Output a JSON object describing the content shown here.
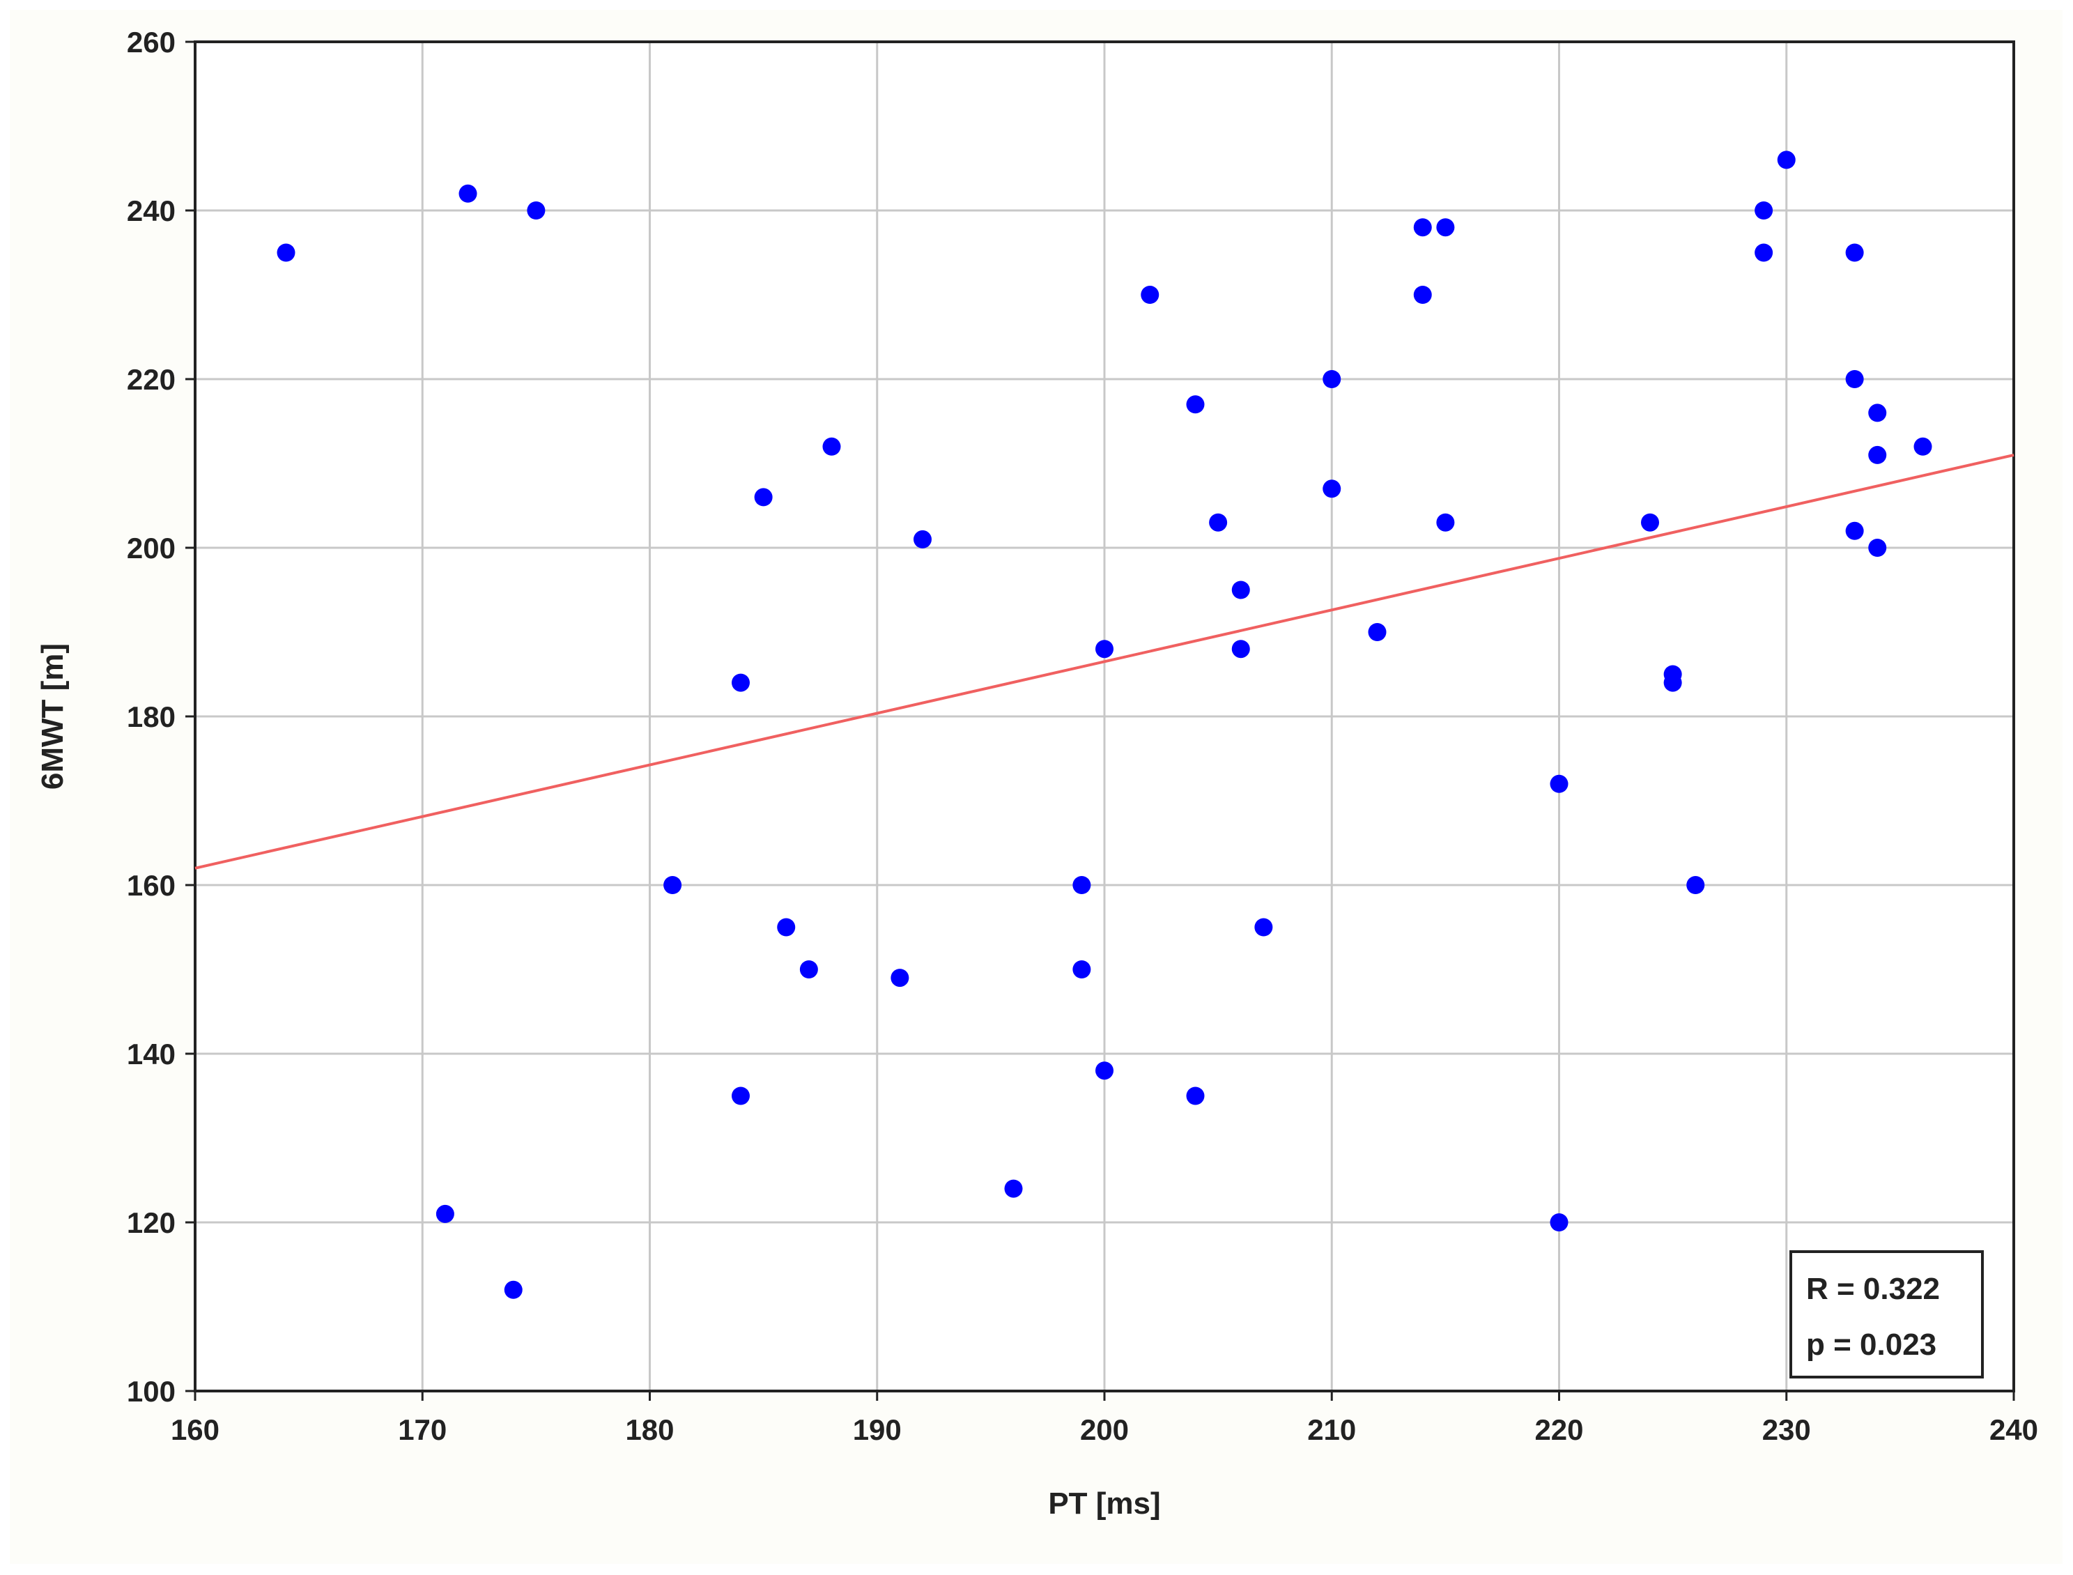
{
  "chart_data": {
    "type": "scatter",
    "title": "",
    "xlabel": "PT [ms]",
    "ylabel": "6MWT [m]",
    "xlim": [
      160,
      240
    ],
    "ylim": [
      100,
      260
    ],
    "xticks": [
      160,
      170,
      180,
      190,
      200,
      210,
      220,
      230,
      240
    ],
    "yticks": [
      100,
      120,
      140,
      160,
      180,
      200,
      220,
      240,
      260
    ],
    "grid": true,
    "legend": "none",
    "colors": {
      "points": "#0000ff",
      "fit_line": "#f06060",
      "grid": "#c8c8c8",
      "axis": "#222222"
    },
    "points": [
      {
        "x": 164,
        "y": 235
      },
      {
        "x": 171,
        "y": 121
      },
      {
        "x": 172,
        "y": 242
      },
      {
        "x": 174,
        "y": 112
      },
      {
        "x": 175,
        "y": 240
      },
      {
        "x": 181,
        "y": 160
      },
      {
        "x": 184,
        "y": 184
      },
      {
        "x": 184,
        "y": 135
      },
      {
        "x": 185,
        "y": 206
      },
      {
        "x": 186,
        "y": 155
      },
      {
        "x": 187,
        "y": 150
      },
      {
        "x": 188,
        "y": 212
      },
      {
        "x": 191,
        "y": 149
      },
      {
        "x": 192,
        "y": 201
      },
      {
        "x": 196,
        "y": 124
      },
      {
        "x": 199,
        "y": 160
      },
      {
        "x": 199,
        "y": 150
      },
      {
        "x": 200,
        "y": 188
      },
      {
        "x": 200,
        "y": 138
      },
      {
        "x": 202,
        "y": 230
      },
      {
        "x": 204,
        "y": 217
      },
      {
        "x": 204,
        "y": 135
      },
      {
        "x": 205,
        "y": 203
      },
      {
        "x": 206,
        "y": 195
      },
      {
        "x": 206,
        "y": 188
      },
      {
        "x": 207,
        "y": 155
      },
      {
        "x": 210,
        "y": 220
      },
      {
        "x": 210,
        "y": 207
      },
      {
        "x": 212,
        "y": 190
      },
      {
        "x": 214,
        "y": 238
      },
      {
        "x": 214,
        "y": 230
      },
      {
        "x": 215,
        "y": 238
      },
      {
        "x": 215,
        "y": 203
      },
      {
        "x": 220,
        "y": 172
      },
      {
        "x": 220,
        "y": 120
      },
      {
        "x": 224,
        "y": 203
      },
      {
        "x": 225,
        "y": 185
      },
      {
        "x": 225,
        "y": 184
      },
      {
        "x": 226,
        "y": 160
      },
      {
        "x": 229,
        "y": 240
      },
      {
        "x": 229,
        "y": 235
      },
      {
        "x": 230,
        "y": 246
      },
      {
        "x": 233,
        "y": 235
      },
      {
        "x": 233,
        "y": 220
      },
      {
        "x": 233,
        "y": 202
      },
      {
        "x": 234,
        "y": 216
      },
      {
        "x": 234,
        "y": 211
      },
      {
        "x": 234,
        "y": 200
      },
      {
        "x": 236,
        "y": 212
      }
    ],
    "fit_line": {
      "x": [
        160,
        240
      ],
      "y": [
        162,
        211
      ]
    },
    "annotations": [
      "R = 0.322",
      "p = 0.023"
    ]
  }
}
